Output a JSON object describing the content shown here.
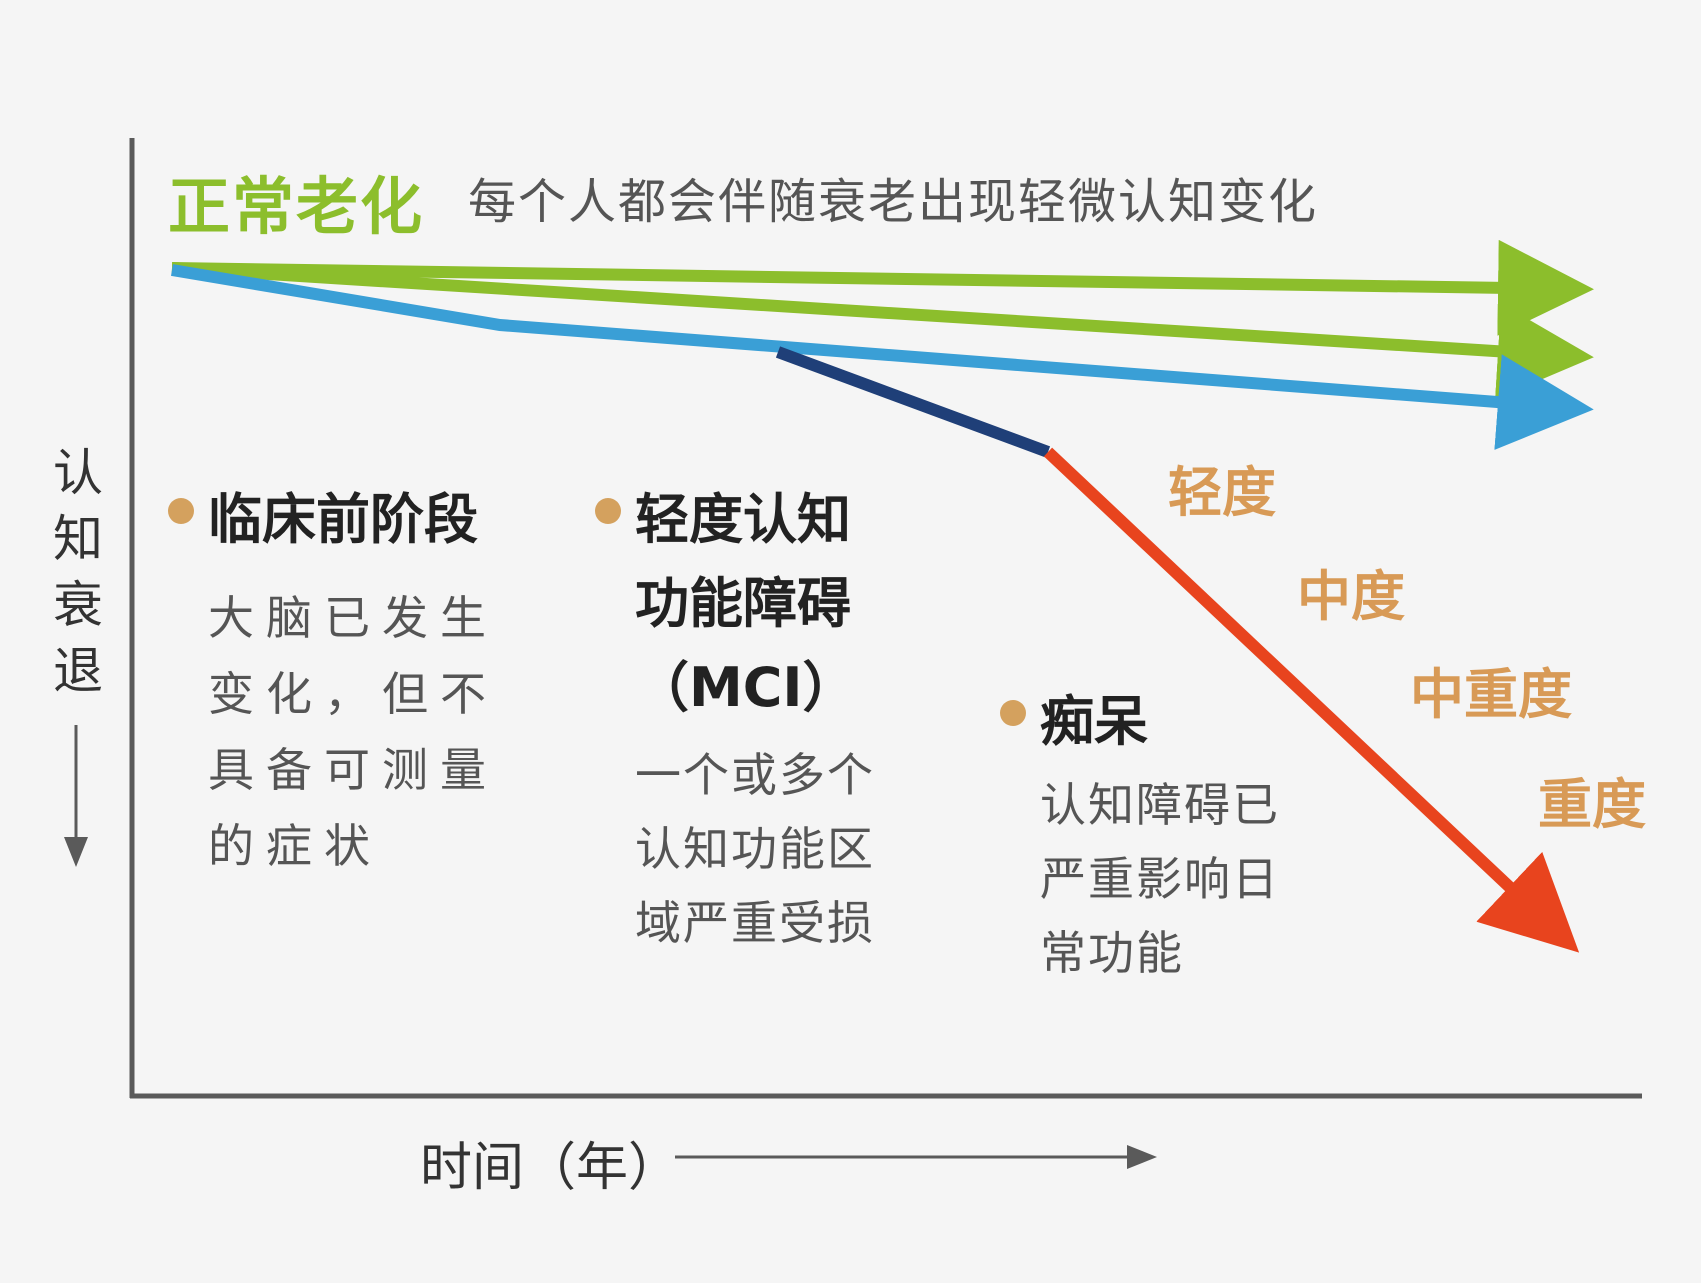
{
  "title": {
    "main": "正常老化",
    "subtitle": "每个人都会伴随衰老出现轻微认知变化"
  },
  "axes": {
    "y_label": "认知衰退",
    "x_label": "时间（年）"
  },
  "stages": [
    {
      "title": "临床前阶段",
      "description": "大脑已发生变化，但不具备可测量的症状"
    },
    {
      "title": "轻度认知功能障碍（MCI）",
      "description": "一个或多个认知功能区域严重受损"
    },
    {
      "title": "痴呆",
      "description": "认知障碍已严重影响日常功能"
    }
  ],
  "severity_levels": [
    "轻度",
    "中度",
    "中重度",
    "重度"
  ],
  "colors": {
    "normal_aging": "#8cbe2c",
    "preclinical": "#3a9fd6",
    "mci": "#1f3f78",
    "dementia": "#e8441e",
    "severity": "#d89a56",
    "stage_dot": "#d4a15e",
    "axis": "#5a5a5a"
  }
}
